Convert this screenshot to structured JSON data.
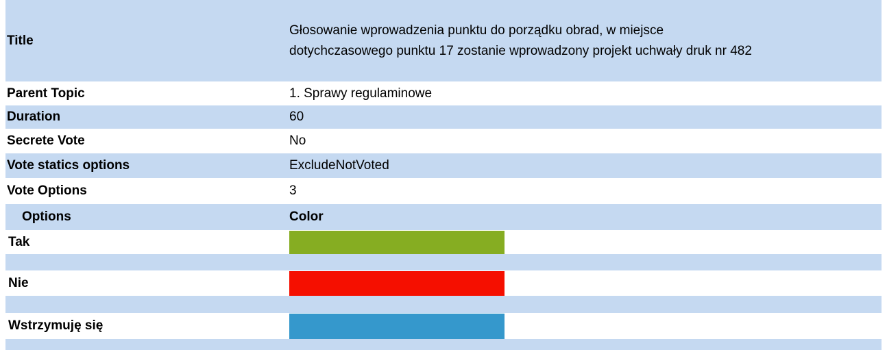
{
  "fields": [
    {
      "label": "Title",
      "value": "Głosowanie wprowadzenia punktu do porządku obrad, w miejsce dotychczasowego punktu 17 zostanie wprowadzony projekt uchwały druk nr 482"
    },
    {
      "label": "Parent Topic",
      "value": "1. Sprawy regulaminowe"
    },
    {
      "label": "Duration",
      "value": "60"
    },
    {
      "label": "Secrete Vote",
      "value": "No"
    },
    {
      "label": "Vote statics options",
      "value": "ExcludeNotVoted"
    },
    {
      "label": "Vote Options",
      "value": "3"
    }
  ],
  "options_table": {
    "headers": [
      "Options",
      "Color"
    ],
    "rows": [
      {
        "name": "Tak",
        "color": "#86ad22"
      },
      {
        "name": "Nie",
        "color": "#f50f00"
      },
      {
        "name": "Wstrzymuję się",
        "color": "#3598cc"
      }
    ]
  }
}
